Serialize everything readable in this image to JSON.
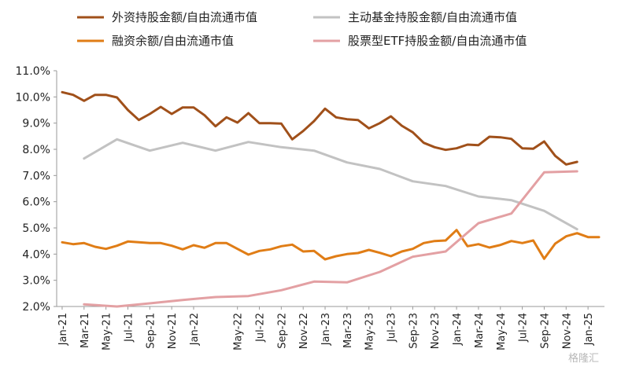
{
  "chart_data": {
    "type": "line",
    "y_unit": "%",
    "ylim": [
      2.0,
      11.0
    ],
    "yticks": [
      "2.0%",
      "3.0%",
      "4.0%",
      "5.0%",
      "6.0%",
      "7.0%",
      "8.0%",
      "9.0%",
      "10.0%",
      "11.0%"
    ],
    "xtick_labels": [
      "Jan-21",
      "Mar-21",
      "May-21",
      "Jul-21",
      "Sep-21",
      "Nov-21",
      "Jan-22",
      "May-22",
      "Jul-22",
      "Sep-22",
      "Nov-22",
      "Jan-23",
      "Mar-23",
      "May-23",
      "Jul-23",
      "Sep-23",
      "Nov-23",
      "Jan-24",
      "Mar-24",
      "May-24",
      "Jul-24",
      "Sep-24",
      "Nov-24",
      "Jan-25"
    ],
    "legend_placement": "top",
    "series": [
      {
        "name": "外资持股金额/自由流通市值",
        "color": "#a0501a",
        "points": [
          [
            0,
            10.18
          ],
          [
            1,
            10.08
          ],
          [
            2,
            9.85
          ],
          [
            3,
            10.08
          ],
          [
            4,
            10.08
          ],
          [
            5,
            9.98
          ],
          [
            6,
            9.5
          ],
          [
            7,
            9.12
          ],
          [
            8,
            9.35
          ],
          [
            9,
            9.62
          ],
          [
            10,
            9.35
          ],
          [
            11,
            9.6
          ],
          [
            12,
            9.6
          ],
          [
            13,
            9.3
          ],
          [
            14,
            8.88
          ],
          [
            15,
            9.22
          ],
          [
            16,
            9.02
          ],
          [
            17,
            9.38
          ],
          [
            18,
            9.0
          ],
          [
            19,
            9.0
          ],
          [
            20,
            8.98
          ],
          [
            21,
            8.38
          ],
          [
            22,
            8.7
          ],
          [
            23,
            9.08
          ],
          [
            24,
            9.55
          ],
          [
            25,
            9.22
          ],
          [
            26,
            9.15
          ],
          [
            27,
            9.12
          ],
          [
            28,
            8.8
          ],
          [
            29,
            9.0
          ],
          [
            30,
            9.26
          ],
          [
            31,
            8.9
          ],
          [
            32,
            8.65
          ],
          [
            33,
            8.25
          ],
          [
            34,
            8.08
          ],
          [
            35,
            7.98
          ],
          [
            36,
            8.04
          ],
          [
            37,
            8.18
          ],
          [
            38,
            8.16
          ],
          [
            39,
            8.48
          ],
          [
            40,
            8.46
          ],
          [
            41,
            8.4
          ],
          [
            42,
            8.04
          ],
          [
            43,
            8.02
          ],
          [
            44,
            8.3
          ],
          [
            45,
            7.75
          ],
          [
            46,
            7.42
          ],
          [
            47,
            7.52
          ]
        ]
      },
      {
        "name": "主动基金持股金额/自由流通市值",
        "color": "#c2c2c2",
        "points": [
          [
            2,
            7.65
          ],
          [
            5,
            8.38
          ],
          [
            8,
            7.95
          ],
          [
            11,
            8.25
          ],
          [
            14,
            7.95
          ],
          [
            17,
            8.28
          ],
          [
            20,
            8.08
          ],
          [
            23,
            7.95
          ],
          [
            26,
            7.5
          ],
          [
            29,
            7.25
          ],
          [
            32,
            6.78
          ],
          [
            35,
            6.6
          ],
          [
            38,
            6.2
          ],
          [
            41,
            6.06
          ],
          [
            44,
            5.65
          ],
          [
            47,
            4.95
          ]
        ]
      },
      {
        "name": "融资余额/自由流通市值",
        "color": "#e07d16",
        "points": [
          [
            0,
            4.45
          ],
          [
            1,
            4.38
          ],
          [
            2,
            4.42
          ],
          [
            3,
            4.28
          ],
          [
            4,
            4.2
          ],
          [
            5,
            4.32
          ],
          [
            6,
            4.48
          ],
          [
            7,
            4.45
          ],
          [
            8,
            4.42
          ],
          [
            9,
            4.42
          ],
          [
            10,
            4.32
          ],
          [
            11,
            4.18
          ],
          [
            12,
            4.34
          ],
          [
            13,
            4.24
          ],
          [
            14,
            4.42
          ],
          [
            15,
            4.42
          ],
          [
            16,
            4.2
          ],
          [
            17,
            3.98
          ],
          [
            18,
            4.12
          ],
          [
            19,
            4.18
          ],
          [
            20,
            4.3
          ],
          [
            21,
            4.36
          ],
          [
            22,
            4.1
          ],
          [
            23,
            4.12
          ],
          [
            24,
            3.8
          ],
          [
            25,
            3.92
          ],
          [
            26,
            4.0
          ],
          [
            27,
            4.04
          ],
          [
            28,
            4.16
          ],
          [
            29,
            4.05
          ],
          [
            30,
            3.92
          ],
          [
            31,
            4.1
          ],
          [
            32,
            4.2
          ],
          [
            33,
            4.42
          ],
          [
            34,
            4.5
          ],
          [
            35,
            4.52
          ],
          [
            36,
            4.92
          ],
          [
            37,
            4.3
          ],
          [
            38,
            4.38
          ],
          [
            39,
            4.25
          ],
          [
            40,
            4.35
          ],
          [
            41,
            4.5
          ],
          [
            42,
            4.42
          ],
          [
            43,
            4.52
          ],
          [
            44,
            3.82
          ],
          [
            45,
            4.4
          ],
          [
            46,
            4.68
          ],
          [
            47,
            4.8
          ],
          [
            48,
            4.65
          ],
          [
            49,
            4.65
          ]
        ]
      },
      {
        "name": "股票型ETF持股金额/自由流通市值",
        "color": "#e3a0a3",
        "points": [
          [
            2,
            2.08
          ],
          [
            5,
            2.0
          ],
          [
            8,
            2.12
          ],
          [
            11,
            2.25
          ],
          [
            14,
            2.36
          ],
          [
            17,
            2.4
          ],
          [
            20,
            2.62
          ],
          [
            23,
            2.95
          ],
          [
            26,
            2.92
          ],
          [
            29,
            3.32
          ],
          [
            32,
            3.9
          ],
          [
            35,
            4.1
          ],
          [
            38,
            5.18
          ],
          [
            41,
            5.55
          ],
          [
            44,
            7.12
          ],
          [
            47,
            7.16
          ]
        ]
      }
    ]
  },
  "watermark": "格隆汇"
}
